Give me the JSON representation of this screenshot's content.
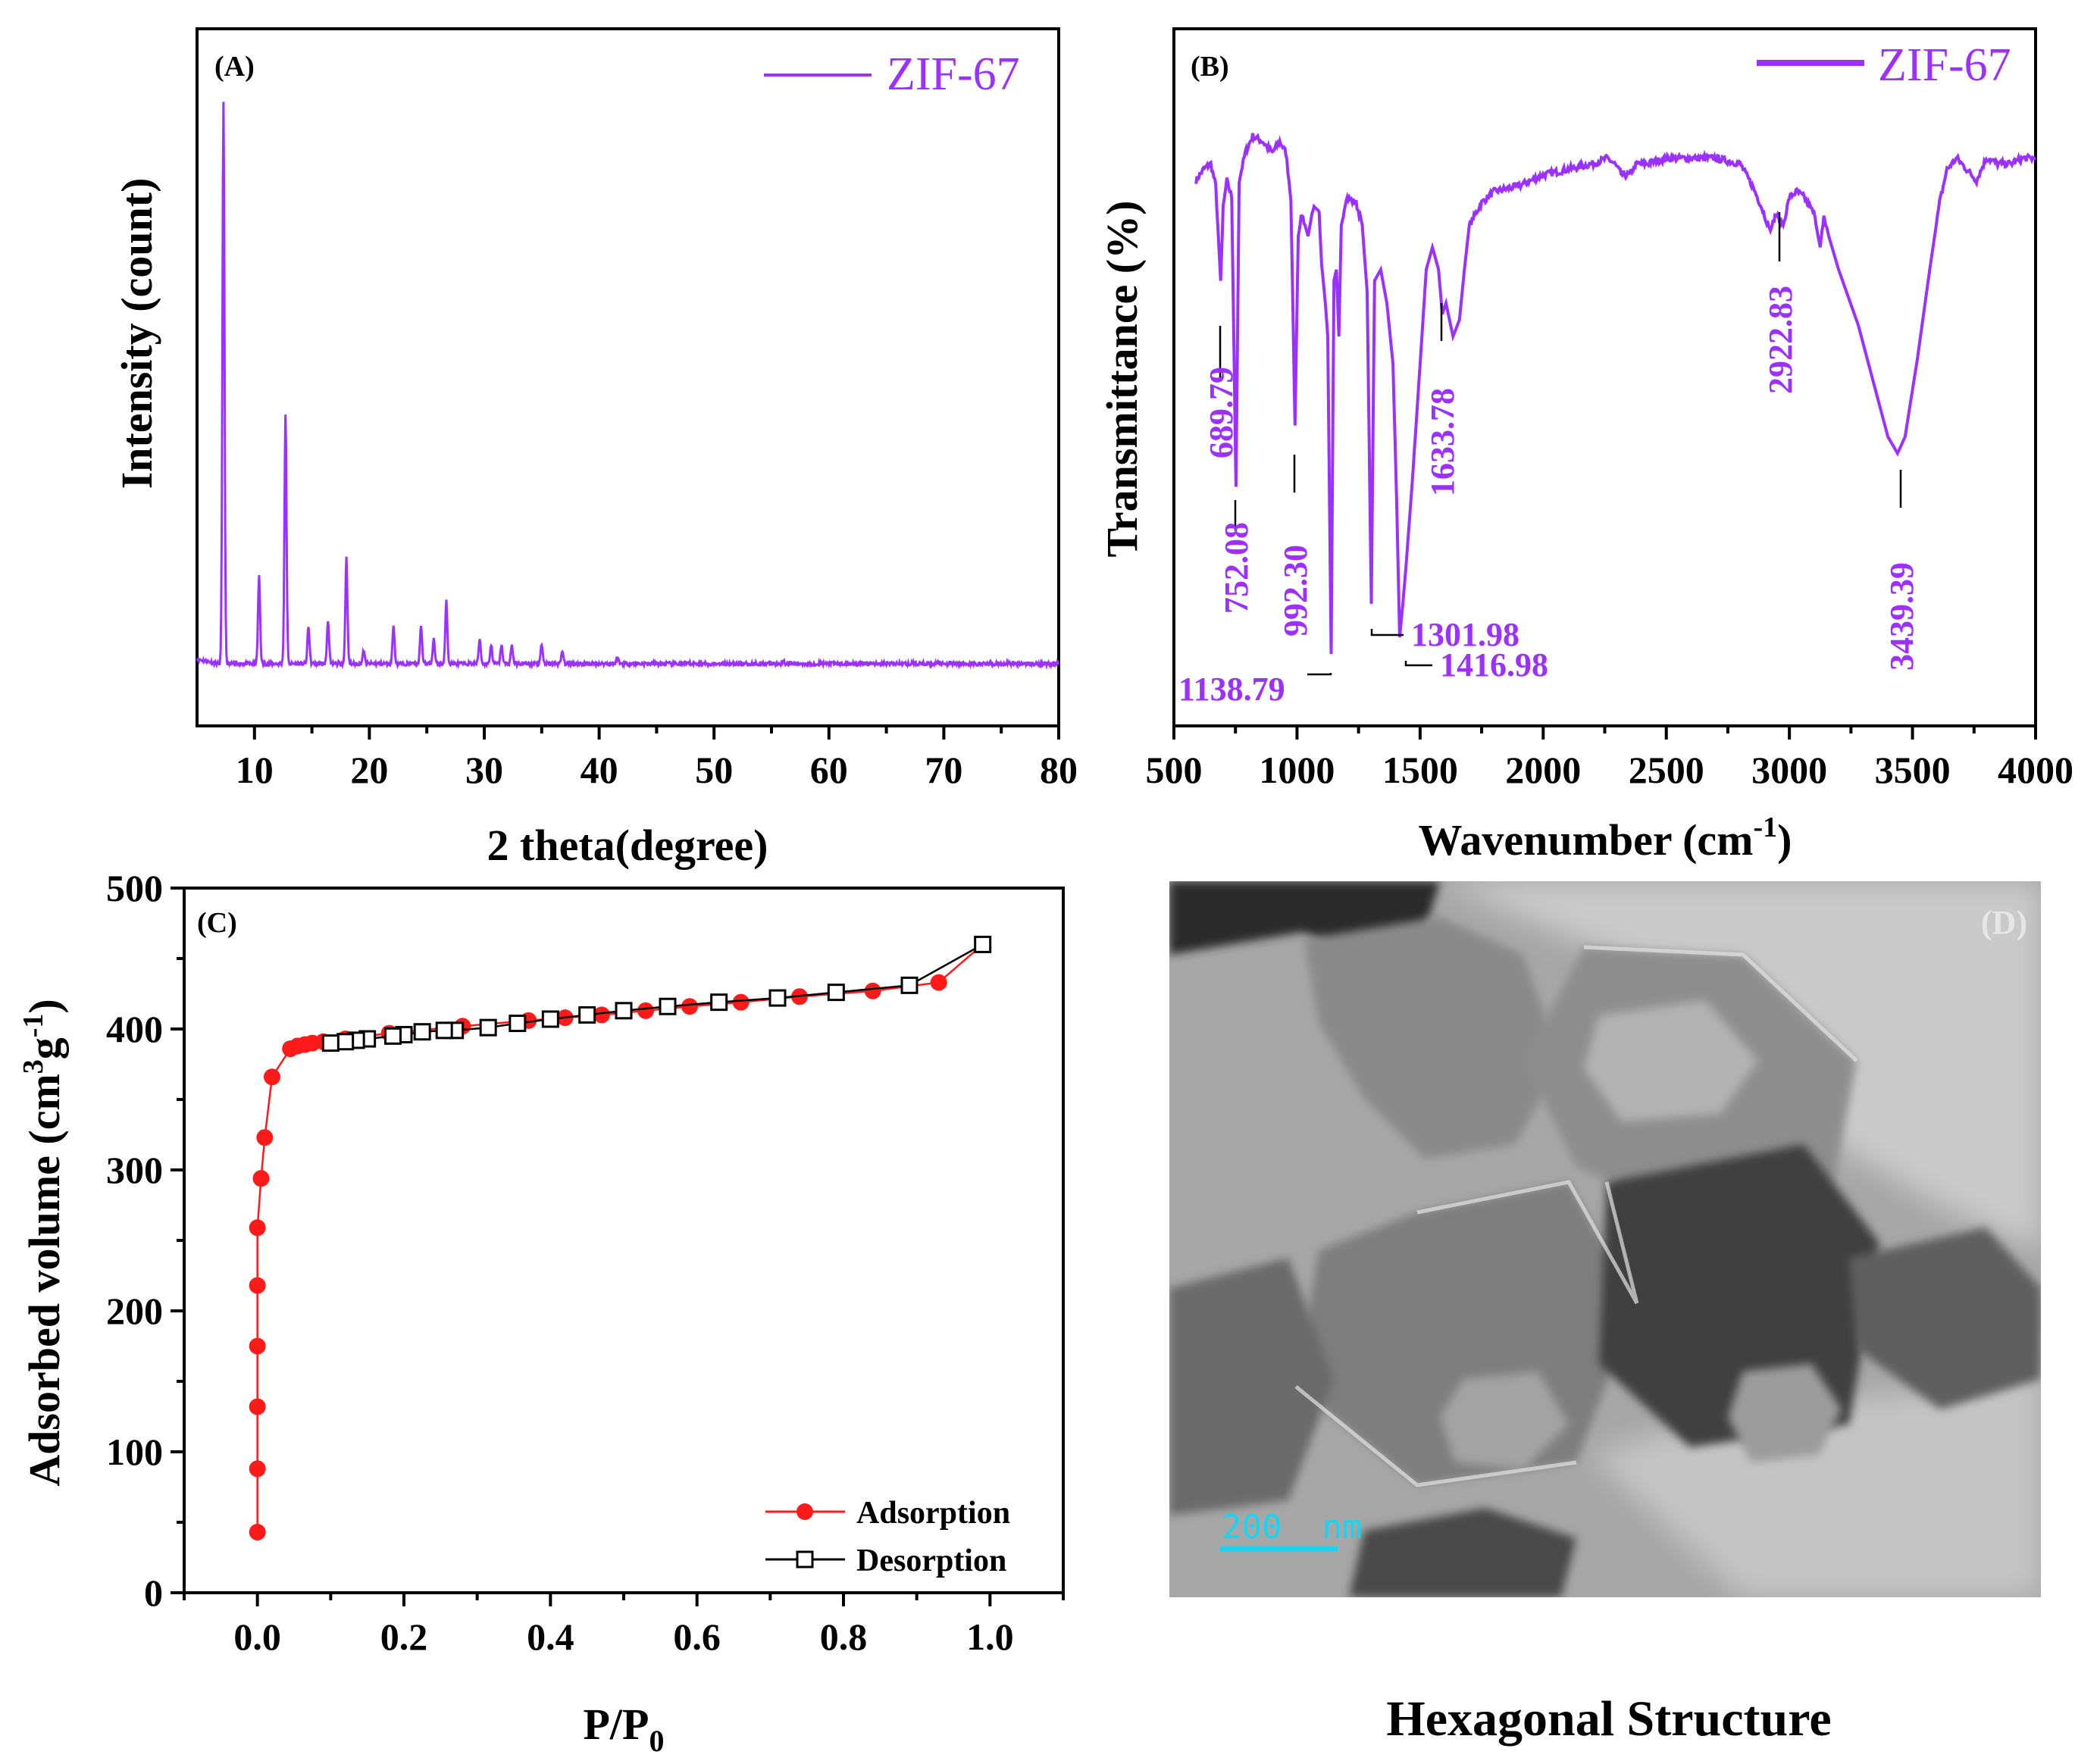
{
  "colors": {
    "purple": "#9b30ff",
    "red": "#ff1a1a",
    "black": "#000000",
    "scale_cyan": "#19d4f0"
  },
  "chart_data": [
    {
      "panel": "(A)",
      "type": "line",
      "title": "",
      "xlabel": "2 theta(degree)",
      "ylabel": "Intensity (count)",
      "xlim": [
        5,
        80
      ],
      "ylim": [
        0,
        1.12
      ],
      "xticks": [
        10,
        20,
        30,
        40,
        50,
        60,
        70,
        80
      ],
      "legend": [
        "ZIF-67"
      ],
      "legend_position": "top-right",
      "baseline": 0.1,
      "peaks": [
        {
          "x": 7.3,
          "y": 1.0
        },
        {
          "x": 10.4,
          "y": 0.24
        },
        {
          "x": 12.7,
          "y": 0.5
        },
        {
          "x": 14.7,
          "y": 0.16
        },
        {
          "x": 16.4,
          "y": 0.17
        },
        {
          "x": 18.0,
          "y": 0.27
        },
        {
          "x": 19.5,
          "y": 0.12
        },
        {
          "x": 22.1,
          "y": 0.16
        },
        {
          "x": 24.5,
          "y": 0.16
        },
        {
          "x": 25.6,
          "y": 0.14
        },
        {
          "x": 26.7,
          "y": 0.2
        },
        {
          "x": 29.6,
          "y": 0.14
        },
        {
          "x": 30.6,
          "y": 0.13
        },
        {
          "x": 31.5,
          "y": 0.13
        },
        {
          "x": 32.4,
          "y": 0.13
        },
        {
          "x": 35.0,
          "y": 0.13
        },
        {
          "x": 36.8,
          "y": 0.12
        },
        {
          "x": 41.6,
          "y": 0.11
        },
        {
          "x": 56.0,
          "y": 0.105
        }
      ]
    },
    {
      "panel": "(B)",
      "type": "line",
      "title": "",
      "xlabel": "Wavenumber (cm",
      "xlabel_sup": "-1",
      "xlabel_tail": ")",
      "ylabel": "Transmittance (%)",
      "xlim": [
        500,
        4000
      ],
      "ylim": [
        0,
        100
      ],
      "xticks": [
        500,
        1000,
        1500,
        2000,
        2500,
        3000,
        3500,
        4000
      ],
      "legend": [
        "ZIF-67"
      ],
      "legend_position": "top-right",
      "series": {
        "name": "ZIF-67",
        "points": [
          [
            590,
            88
          ],
          [
            620,
            90
          ],
          [
            650,
            91
          ],
          [
            670,
            87
          ],
          [
            690,
            70
          ],
          [
            700,
            83
          ],
          [
            715,
            88
          ],
          [
            735,
            85
          ],
          [
            752,
            33
          ],
          [
            765,
            88
          ],
          [
            790,
            93
          ],
          [
            820,
            96
          ],
          [
            860,
            95
          ],
          [
            900,
            93
          ],
          [
            930,
            95
          ],
          [
            955,
            93
          ],
          [
            975,
            85
          ],
          [
            992,
            44
          ],
          [
            1005,
            78
          ],
          [
            1020,
            82
          ],
          [
            1045,
            78
          ],
          [
            1065,
            83
          ],
          [
            1090,
            82
          ],
          [
            1100,
            73
          ],
          [
            1115,
            66
          ],
          [
            1125,
            60
          ],
          [
            1138.79,
            3
          ],
          [
            1150,
            70
          ],
          [
            1160,
            72
          ],
          [
            1170,
            60
          ],
          [
            1180,
            80
          ],
          [
            1200,
            85
          ],
          [
            1240,
            84
          ],
          [
            1265,
            80
          ],
          [
            1285,
            68
          ],
          [
            1301.98,
            12
          ],
          [
            1315,
            70
          ],
          [
            1340,
            72
          ],
          [
            1365,
            66
          ],
          [
            1390,
            55
          ],
          [
            1405,
            30
          ],
          [
            1416.98,
            6
          ],
          [
            1430,
            12
          ],
          [
            1445,
            20
          ],
          [
            1470,
            35
          ],
          [
            1500,
            55
          ],
          [
            1525,
            72
          ],
          [
            1550,
            76
          ],
          [
            1575,
            72
          ],
          [
            1590,
            64
          ],
          [
            1605,
            66
          ],
          [
            1633.78,
            60
          ],
          [
            1660,
            63
          ],
          [
            1680,
            72
          ],
          [
            1700,
            80
          ],
          [
            1750,
            84
          ],
          [
            1800,
            86
          ],
          [
            1900,
            87
          ],
          [
            2000,
            89
          ],
          [
            2100,
            90
          ],
          [
            2200,
            91
          ],
          [
            2260,
            92
          ],
          [
            2290,
            91
          ],
          [
            2320,
            89
          ],
          [
            2350,
            89
          ],
          [
            2380,
            91
          ],
          [
            2420,
            91
          ],
          [
            2500,
            92
          ],
          [
            2600,
            92
          ],
          [
            2700,
            92
          ],
          [
            2800,
            91
          ],
          [
            2850,
            87
          ],
          [
            2880,
            84
          ],
          [
            2922.83,
            79
          ],
          [
            2945,
            82
          ],
          [
            2975,
            80
          ],
          [
            3000,
            85
          ],
          [
            3030,
            86
          ],
          [
            3060,
            85
          ],
          [
            3100,
            82
          ],
          [
            3125,
            76
          ],
          [
            3140,
            82
          ],
          [
            3160,
            78
          ],
          [
            3200,
            72
          ],
          [
            3280,
            62
          ],
          [
            3340,
            52
          ],
          [
            3400,
            42
          ],
          [
            3439.39,
            39
          ],
          [
            3470,
            42
          ],
          [
            3520,
            56
          ],
          [
            3570,
            72
          ],
          [
            3610,
            84
          ],
          [
            3640,
            90
          ],
          [
            3680,
            92
          ],
          [
            3720,
            90
          ],
          [
            3760,
            88
          ],
          [
            3800,
            92
          ],
          [
            3850,
            91
          ],
          [
            3900,
            91
          ],
          [
            3950,
            92
          ],
          [
            4000,
            92
          ]
        ]
      },
      "annotations": [
        {
          "label": "689.79",
          "x": 689.79,
          "y": 70
        },
        {
          "label": "752.08",
          "x": 752.08,
          "y": 33
        },
        {
          "label": "992.30",
          "x": 992.3,
          "y": 44
        },
        {
          "label": "1138.79",
          "x": 1138.79,
          "y": 3
        },
        {
          "label": "1301.98",
          "x": 1301.98,
          "y": 12
        },
        {
          "label": "1416.98",
          "x": 1416.98,
          "y": 6
        },
        {
          "label": "1633.78",
          "x": 1633.78,
          "y": 60
        },
        {
          "label": "2922.83",
          "x": 2922.83,
          "y": 79
        },
        {
          "label": "3439.39",
          "x": 3439.39,
          "y": 39
        }
      ]
    },
    {
      "panel": "(C)",
      "type": "scatter",
      "title": "",
      "xlabel": "P/P",
      "xlabel_sub": "0",
      "ylabel": "Adsorbed volume (cm",
      "ylabel_sup1": "3",
      "ylabel_mid": "g",
      "ylabel_sup2": "-1",
      "ylabel_tail": ")",
      "xlim": [
        -0.1,
        1.1
      ],
      "ylim": [
        0,
        500
      ],
      "xticks": [
        0.0,
        0.2,
        0.4,
        0.6,
        0.8,
        1.0
      ],
      "xtick_labels": [
        "0.0",
        "0.2",
        "0.4",
        "0.6",
        "0.8",
        "1.0"
      ],
      "yticks": [
        0,
        100,
        200,
        300,
        400,
        500
      ],
      "legend_position": "bottom-right",
      "series": [
        {
          "name": "Adsorption",
          "marker": "filled-circle",
          "x": [
            0.0,
            0.0,
            0.0,
            0.0,
            0.0,
            0.0,
            0.005,
            0.01,
            0.02,
            0.045,
            0.055,
            0.065,
            0.075,
            0.09,
            0.12,
            0.18,
            0.28,
            0.37,
            0.42,
            0.47,
            0.53,
            0.59,
            0.66,
            0.74,
            0.84,
            0.93,
            0.99
          ],
          "y": [
            43,
            88,
            132,
            175,
            218,
            259,
            294,
            323,
            366,
            386,
            388,
            389,
            390,
            391,
            393,
            397,
            402,
            406,
            408,
            410,
            413,
            416,
            419,
            423,
            427,
            433,
            460
          ]
        },
        {
          "name": "Desorption",
          "marker": "open-square",
          "x": [
            0.99,
            0.89,
            0.79,
            0.71,
            0.63,
            0.56,
            0.5,
            0.45,
            0.4,
            0.355,
            0.315,
            0.27,
            0.255,
            0.225,
            0.2,
            0.185,
            0.15,
            0.135,
            0.12,
            0.1
          ],
          "y": [
            460,
            431,
            426,
            422,
            419,
            416,
            413,
            410,
            407,
            404,
            401,
            399,
            399,
            398,
            396,
            395,
            393,
            392,
            391,
            390
          ]
        }
      ]
    }
  ],
  "panel_d": {
    "label": "(D)",
    "scale_bar": "200  nm",
    "caption": "Hexagonal Structure"
  }
}
